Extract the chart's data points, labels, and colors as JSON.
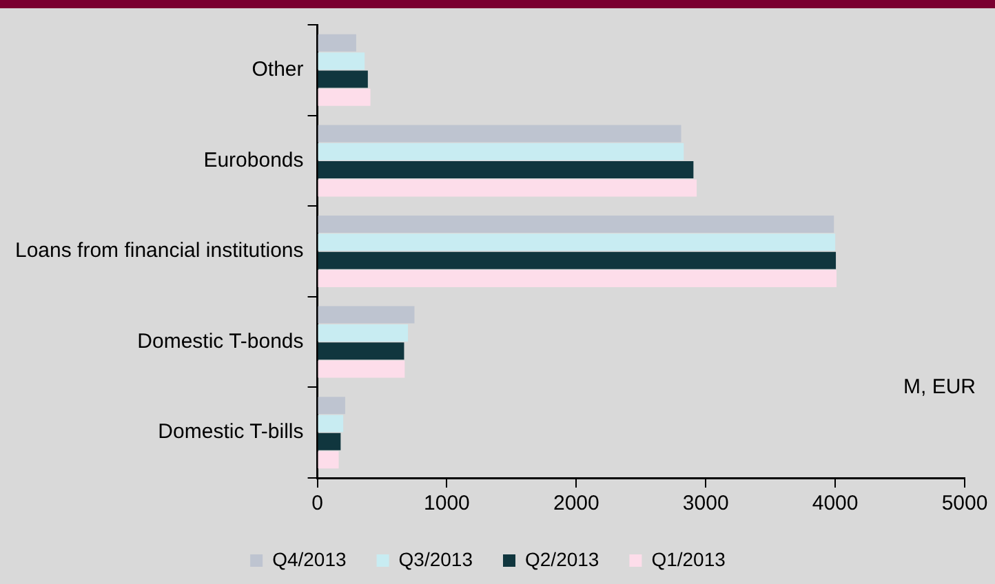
{
  "chart_data": {
    "type": "bar",
    "orientation": "horizontal",
    "categories": [
      "Other",
      "Eurobonds",
      "Loans from financial institutions",
      "Domestic T-bonds",
      "Domestic T-bills"
    ],
    "series": [
      {
        "name": "Q4/2013",
        "color": "#bec4d0",
        "values": [
          300,
          2810,
          3990,
          750,
          215
        ]
      },
      {
        "name": "Q3/2013",
        "color": "#c8ecf2",
        "values": [
          365,
          2830,
          4000,
          700,
          200
        ]
      },
      {
        "name": "Q2/2013",
        "color": "#10363e",
        "values": [
          390,
          2905,
          4005,
          670,
          180
        ]
      },
      {
        "name": "Q1/2013",
        "color": "#fdddea",
        "values": [
          410,
          2930,
          4010,
          675,
          165
        ]
      }
    ],
    "xlim": [
      0,
      5000
    ],
    "xticks": [
      0,
      1000,
      2000,
      3000,
      4000,
      5000
    ],
    "grid": false,
    "legend": "bottom",
    "annotations": [
      "M, EUR"
    ]
  }
}
